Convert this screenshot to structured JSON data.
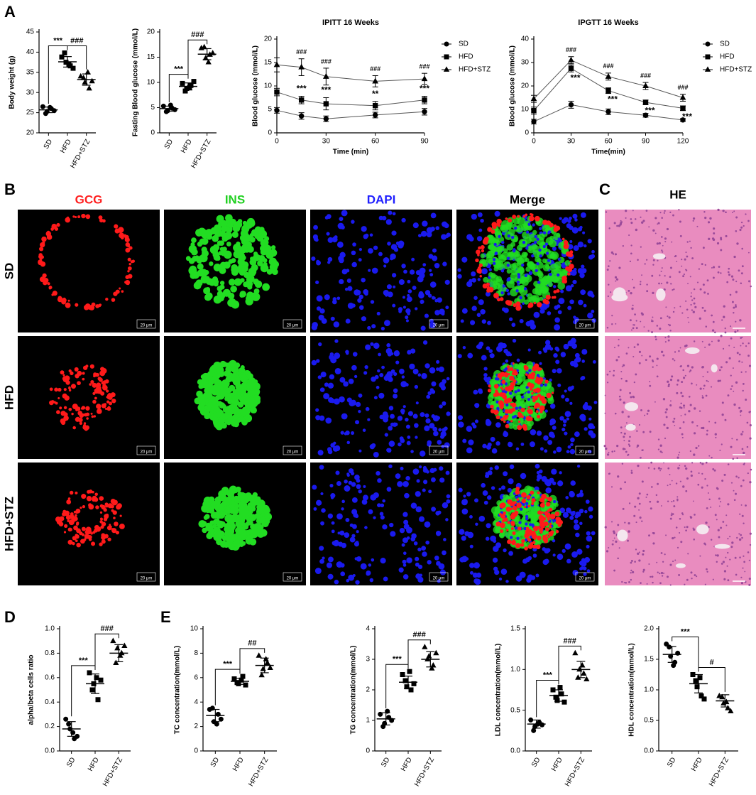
{
  "panels": [
    "A",
    "B",
    "C",
    "D",
    "E"
  ],
  "images": {
    "columns": [
      "GCG",
      "INS",
      "DAPI",
      "Merge"
    ],
    "column_colors": [
      "#ff2020",
      "#20d020",
      "#2020ff",
      "#000000"
    ],
    "he_title": "HE",
    "rows": [
      "SD",
      "HFD",
      "HFD+STZ"
    ],
    "scale_bar": "20 μm"
  },
  "chart_data": [
    {
      "type": "dot",
      "ylabel": "Body weight (g)",
      "categories": [
        "SD",
        "HFD",
        "HFD+STZ"
      ],
      "markers": [
        "circle",
        "square",
        "triangle"
      ],
      "color": "#000000",
      "points": [
        [
          26.5,
          25.3,
          26.0,
          24.8,
          26.3,
          25.5
        ],
        [
          38.8,
          37.5,
          36.6,
          39.8,
          37.0,
          36.0
        ],
        [
          34.0,
          32.5,
          31.0,
          33.6,
          35.0,
          32.8
        ]
      ],
      "means": [
        25.7,
        37.6,
        33.2
      ],
      "errors": [
        0.7,
        1.3,
        1.4
      ],
      "annotations": [
        "***",
        "###"
      ],
      "ylim": [
        20,
        45
      ],
      "yticks": [
        20,
        25,
        30,
        35,
        40,
        45
      ]
    },
    {
      "type": "dot",
      "ylabel": "Fasting Blood glucose (mmol/L)",
      "categories": [
        "SD",
        "HFD",
        "HFD+STZ"
      ],
      "markers": [
        "circle",
        "square",
        "triangle"
      ],
      "color": "#000000",
      "points": [
        [
          5.3,
          4.4,
          4.9,
          4.2,
          5.5,
          4.6
        ],
        [
          9.8,
          8.8,
          9.4,
          8.3,
          9.0,
          10.2
        ],
        [
          16.8,
          14.8,
          15.5,
          17.0,
          14.0,
          15.8
        ]
      ],
      "means": [
        4.8,
        9.2,
        15.6
      ],
      "errors": [
        0.5,
        0.7,
        1.1
      ],
      "annotations": [
        "***",
        "###"
      ],
      "ylim": [
        0,
        20
      ],
      "yticks": [
        0,
        5,
        10,
        15,
        20
      ]
    },
    {
      "type": "line",
      "title": "IPITT 16 Weeks",
      "xlabel": "Time (min)",
      "ylabel": "Blood glucose (mmol/L)",
      "color": "#000000",
      "x": [
        0,
        15,
        30,
        60,
        90
      ],
      "xlim": [
        0,
        90
      ],
      "xticks": [
        0,
        30,
        60,
        90
      ],
      "ylim": [
        0,
        20
      ],
      "yticks": [
        0,
        5,
        10,
        15,
        20
      ],
      "series": [
        {
          "name": "SD",
          "marker": "circle",
          "values": [
            4.8,
            3.6,
            3.0,
            3.8,
            4.5
          ],
          "errors": [
            0.6,
            0.7,
            0.6,
            0.6,
            0.7
          ]
        },
        {
          "name": "HFD",
          "marker": "square",
          "values": [
            8.7,
            7.0,
            6.2,
            5.8,
            7.0
          ],
          "errors": [
            0.8,
            0.8,
            1.3,
            0.9,
            0.8
          ]
        },
        {
          "name": "HFD+STZ",
          "marker": "triangle",
          "values": [
            14.5,
            14.0,
            12.0,
            11.0,
            11.5
          ],
          "errors": [
            1.5,
            1.8,
            1.8,
            1.2,
            1.2
          ]
        }
      ],
      "hash_labels": [
        null,
        "###",
        "###",
        "###",
        "###"
      ],
      "star_labels": [
        null,
        "***",
        "***",
        "**",
        "***"
      ]
    },
    {
      "type": "line",
      "title": "IPGTT 16 Weeks",
      "xlabel": "Time(min)",
      "ylabel": "Blood glucose (mmol/L)",
      "color": "#000000",
      "x": [
        0,
        30,
        60,
        90,
        120
      ],
      "xlim": [
        0,
        120
      ],
      "xticks": [
        0,
        30,
        60,
        90,
        120
      ],
      "ylim": [
        0,
        40
      ],
      "yticks": [
        0,
        10,
        20,
        30,
        40
      ],
      "series": [
        {
          "name": "SD",
          "marker": "circle",
          "values": [
            4.8,
            12.0,
            9.0,
            7.5,
            5.5
          ],
          "errors": [
            1.0,
            1.5,
            1.2,
            0.8,
            0.6
          ]
        },
        {
          "name": "HFD",
          "marker": "square",
          "values": [
            9.5,
            27.5,
            18.0,
            13.0,
            10.5
          ],
          "errors": [
            1.5,
            1.5,
            1.2,
            1.0,
            1.0
          ]
        },
        {
          "name": "HFD+STZ",
          "marker": "triangle",
          "values": [
            14.5,
            31.0,
            24.0,
            20.0,
            15.0
          ],
          "errors": [
            1.5,
            1.5,
            1.5,
            1.5,
            1.5
          ]
        }
      ],
      "hash_labels": [
        null,
        "###",
        "###",
        "###",
        "###"
      ],
      "star_labels": [
        null,
        "***",
        "***",
        "***",
        "***"
      ]
    },
    {
      "type": "dot",
      "ylabel": "alpha/beta cells ratio",
      "categories": [
        "SD",
        "HFD",
        "HFD+STZ"
      ],
      "markers": [
        "circle",
        "square",
        "triangle"
      ],
      "color": "#000000",
      "points": [
        [
          0.26,
          0.18,
          0.1,
          0.22,
          0.15,
          0.12
        ],
        [
          0.64,
          0.55,
          0.42,
          0.5,
          0.6,
          0.58
        ],
        [
          0.9,
          0.84,
          0.8,
          0.72,
          0.78,
          0.86
        ]
      ],
      "means": [
        0.18,
        0.55,
        0.8
      ],
      "errors": [
        0.06,
        0.08,
        0.07
      ],
      "annotations": [
        "***",
        "###"
      ],
      "ylim": [
        0,
        1
      ],
      "yticks": [
        {
          "value": 0,
          "label": "0.0"
        },
        0.2,
        0.4,
        0.6,
        0.8,
        {
          "value": 1,
          "label": "1.0"
        }
      ]
    },
    {
      "type": "dot",
      "ylabel": "TC concentration(mmol/L)",
      "categories": [
        "SD",
        "HFD",
        "HFD+STZ"
      ],
      "markers": [
        "circle",
        "square",
        "triangle"
      ],
      "color": "#000000",
      "points": [
        [
          3.4,
          2.4,
          3.0,
          3.5,
          2.2,
          2.6
        ],
        [
          5.9,
          5.5,
          6.1,
          5.6,
          5.8,
          5.4
        ],
        [
          7.8,
          6.7,
          7.2,
          6.2,
          7.5,
          6.8
        ]
      ],
      "means": [
        2.9,
        5.7,
        7.0
      ],
      "errors": [
        0.5,
        0.25,
        0.6
      ],
      "annotations": [
        "***",
        "##"
      ],
      "ylim": [
        0,
        10
      ],
      "yticks": [
        0,
        2,
        4,
        6,
        8,
        10
      ]
    },
    {
      "type": "dot",
      "ylabel": "TG concentration(mmol/L)",
      "categories": [
        "SD",
        "HFD",
        "HFD+STZ"
      ],
      "markers": [
        "circle",
        "square",
        "triangle"
      ],
      "color": "#000000",
      "points": [
        [
          1.2,
          0.9,
          1.1,
          0.8,
          1.3,
          1.0
        ],
        [
          2.5,
          2.1,
          2.0,
          2.3,
          2.6,
          2.2
        ],
        [
          3.4,
          3.1,
          2.8,
          3.0,
          2.7,
          3.2
        ]
      ],
      "means": [
        1.05,
        2.25,
        3.0
      ],
      "errors": [
        0.2,
        0.2,
        0.25
      ],
      "annotations": [
        "***",
        "###"
      ],
      "ylim": [
        0,
        4
      ],
      "yticks": [
        0,
        1,
        2,
        3,
        4
      ]
    },
    {
      "type": "dot",
      "ylabel": "LDL concentration(mmol/L)",
      "categories": [
        "SD",
        "HFD",
        "HFD+STZ"
      ],
      "markers": [
        "circle",
        "square",
        "triangle"
      ],
      "color": "#000000",
      "points": [
        [
          0.38,
          0.3,
          0.35,
          0.25,
          0.33,
          0.32
        ],
        [
          0.75,
          0.62,
          0.7,
          0.66,
          0.78,
          0.6
        ],
        [
          1.2,
          1.0,
          0.95,
          0.9,
          1.05,
          0.88
        ]
      ],
      "means": [
        0.33,
        0.68,
        1.0
      ],
      "errors": [
        0.05,
        0.07,
        0.1
      ],
      "annotations": [
        "***",
        "###"
      ],
      "ylim": [
        0,
        1.5
      ],
      "yticks": [
        {
          "value": 0,
          "label": "0.0"
        },
        0.5,
        {
          "value": 1,
          "label": "1.0"
        },
        1.5
      ]
    },
    {
      "type": "dot",
      "ylabel": "HDL concentration(mmol/L)",
      "categories": [
        "SD",
        "HFD",
        "HFD+STZ"
      ],
      "markers": [
        "circle",
        "square",
        "triangle"
      ],
      "color": "#000000",
      "points": [
        [
          1.75,
          1.55,
          1.45,
          1.7,
          1.4,
          1.6
        ],
        [
          1.25,
          1.05,
          0.9,
          1.15,
          1.2,
          0.85
        ],
        [
          0.9,
          0.78,
          0.7,
          0.88,
          0.8,
          0.65
        ]
      ],
      "means": [
        1.58,
        1.1,
        0.82
      ],
      "errors": [
        0.13,
        0.15,
        0.1
      ],
      "annotations": [
        "***",
        "#"
      ],
      "ylim": [
        0,
        2
      ],
      "yticks": [
        {
          "value": 0,
          "label": "0.0"
        },
        0.5,
        {
          "value": 1,
          "label": "1.0"
        },
        1.5,
        {
          "value": 2,
          "label": "2.0"
        }
      ]
    }
  ]
}
